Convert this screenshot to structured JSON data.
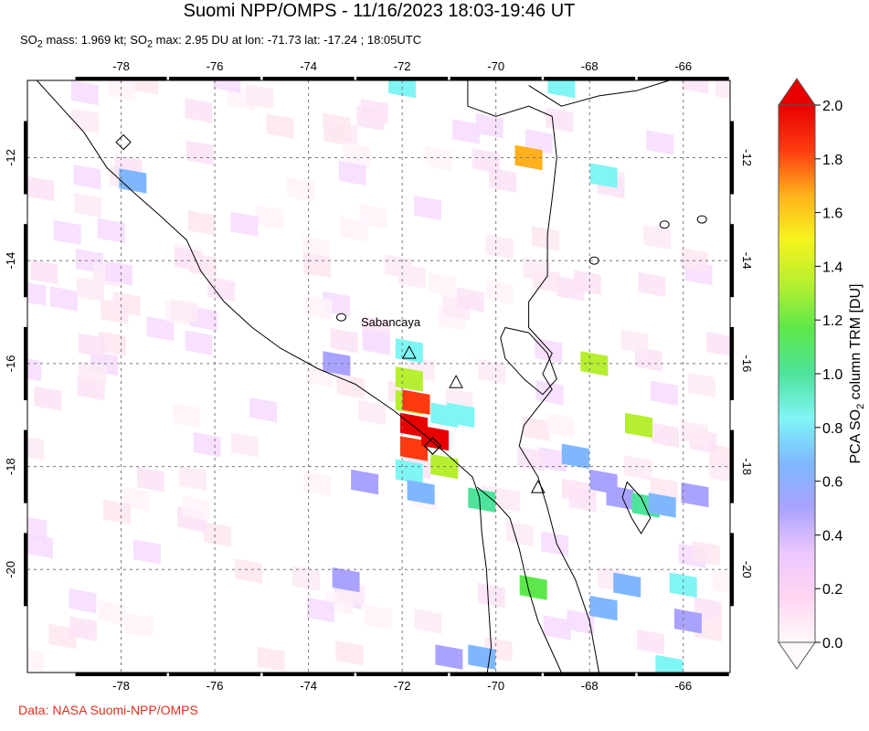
{
  "header": {
    "title": "Suomi NPP/OMPS - 11/16/2023 18:03-19:46 UT",
    "subtitle_pre": "SO",
    "subtitle_sub": "2",
    "subtitle_mid": " mass: 1.969 kt; SO",
    "subtitle_sub2": "2",
    "subtitle_post": " max: 2.95 DU at lon: -71.73 lat: -17.24 ; 18:05UTC"
  },
  "credit": "Data: NASA Suomi-NPP/OMPS",
  "map": {
    "lon_range": [
      -80,
      -65
    ],
    "lat_range": [
      -22,
      -10.5
    ],
    "lon_ticks": [
      -78,
      -76,
      -74,
      -72,
      -70,
      -68,
      -66
    ],
    "lat_ticks": [
      -12,
      -14,
      -16,
      -18,
      -20
    ],
    "grid": true,
    "volcano_label": "Sabancaya",
    "volcanoes": [
      {
        "lon": -71.85,
        "lat": -15.79
      },
      {
        "lon": -70.85,
        "lat": -16.36
      },
      {
        "lon": -69.1,
        "lat": -18.4
      }
    ],
    "max_marker": {
      "lon": -71.35,
      "lat": -17.6
    },
    "small_island_marker": {
      "lon": -77.95,
      "lat": -11.7
    }
  },
  "colorbar": {
    "title_pre": "PCA SO",
    "title_sub": "2",
    "title_post": " column TRM [DU]",
    "ticks": [
      "2.0",
      "1.8",
      "1.6",
      "1.4",
      "1.2",
      "1.0",
      "0.8",
      "0.6",
      "0.4",
      "0.2",
      "0.0"
    ],
    "colors": [
      "#fffafa",
      "#ffd6f2",
      "#ecc6ff",
      "#a9a3ff",
      "#7fb7ff",
      "#7ff5f5",
      "#4ee39b",
      "#5ce84b",
      "#b6ef2f",
      "#f6f41c",
      "#ffb01c",
      "#ff3a10",
      "#e80000"
    ]
  },
  "chart_data": {
    "type": "heatmap",
    "title": "Suomi NPP/OMPS - 11/16/2023 18:03-19:46 UT",
    "xlabel": "",
    "ylabel": "",
    "xlim": [
      -80,
      -65
    ],
    "ylim": [
      -22,
      -10.5
    ],
    "value_label": "PCA SO2 column TRM [DU]",
    "value_range": [
      0,
      2.0
    ],
    "cells": [
      {
        "lon": -71.85,
        "lat": -15.75,
        "v": 0.75
      },
      {
        "lon": -71.85,
        "lat": -16.3,
        "v": 1.35
      },
      {
        "lon": -71.85,
        "lat": -16.75,
        "v": 1.3
      },
      {
        "lon": -71.75,
        "lat": -17.2,
        "v": 2.0
      },
      {
        "lon": -71.75,
        "lat": -17.65,
        "v": 1.75
      },
      {
        "lon": -71.3,
        "lat": -17.45,
        "v": 2.0
      },
      {
        "lon": -71.1,
        "lat": -17.0,
        "v": 0.85
      },
      {
        "lon": -70.75,
        "lat": -17.0,
        "v": 0.75
      },
      {
        "lon": -71.1,
        "lat": -18.0,
        "v": 1.4
      },
      {
        "lon": -71.85,
        "lat": -18.1,
        "v": 0.9
      },
      {
        "lon": -71.6,
        "lat": -18.5,
        "v": 0.65
      },
      {
        "lon": -70.3,
        "lat": -18.65,
        "v": 1.05
      },
      {
        "lon": -71.7,
        "lat": -16.75,
        "v": 1.75
      },
      {
        "lon": -69.3,
        "lat": -12.0,
        "v": 1.6
      },
      {
        "lon": -67.7,
        "lat": -12.35,
        "v": 0.8
      },
      {
        "lon": -68.6,
        "lat": -10.6,
        "v": 0.75
      },
      {
        "lon": -72.0,
        "lat": -10.6,
        "v": 0.75
      },
      {
        "lon": -67.9,
        "lat": -16.0,
        "v": 1.3
      },
      {
        "lon": -66.95,
        "lat": -17.2,
        "v": 1.25
      },
      {
        "lon": -68.3,
        "lat": -17.8,
        "v": 0.6
      },
      {
        "lon": -67.7,
        "lat": -18.3,
        "v": 0.55
      },
      {
        "lon": -67.35,
        "lat": -18.6,
        "v": 0.55
      },
      {
        "lon": -66.8,
        "lat": -18.75,
        "v": 1.05
      },
      {
        "lon": -66.45,
        "lat": -18.75,
        "v": 0.7
      },
      {
        "lon": -65.75,
        "lat": -18.55,
        "v": 0.55
      },
      {
        "lon": -69.2,
        "lat": -20.35,
        "v": 1.15
      },
      {
        "lon": -67.7,
        "lat": -20.75,
        "v": 0.65
      },
      {
        "lon": -67.2,
        "lat": -20.3,
        "v": 0.6
      },
      {
        "lon": -66.0,
        "lat": -20.3,
        "v": 0.75
      },
      {
        "lon": -77.75,
        "lat": -12.45,
        "v": 0.6
      },
      {
        "lon": -70.3,
        "lat": -21.7,
        "v": 0.6
      },
      {
        "lon": -73.4,
        "lat": -16.0,
        "v": 0.5
      },
      {
        "lon": -73.2,
        "lat": -20.2,
        "v": 0.5
      },
      {
        "lon": -72.8,
        "lat": -18.3,
        "v": 0.55
      },
      {
        "lon": -71.0,
        "lat": -21.7,
        "v": 0.55
      },
      {
        "lon": -65.9,
        "lat": -21.0,
        "v": 0.55
      },
      {
        "lon": -66.3,
        "lat": -21.9,
        "v": 0.9
      }
    ]
  }
}
